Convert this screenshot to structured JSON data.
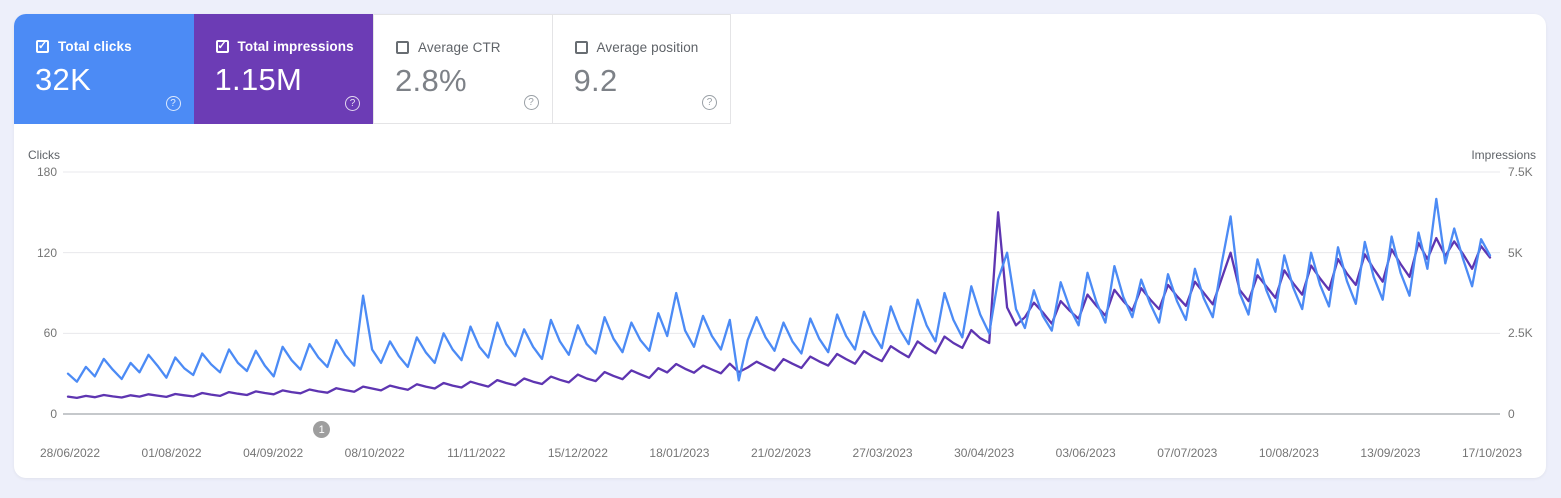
{
  "page": {
    "background": "#edeffa",
    "panel_background": "#ffffff",
    "grid_line_color": "#e8e8ec",
    "axis_line_color": "#8b9097",
    "annotation_badge_color": "#9e9e9e",
    "card_border_color": "#e4e4e6"
  },
  "icons": {
    "check": "✓",
    "help": "?"
  },
  "metric_cards": [
    {
      "label": "Total clicks",
      "value": "32K",
      "checked": true,
      "selected": true,
      "background": "#4c8bf5",
      "label_color": "#ffffff",
      "value_color": "#ffffff"
    },
    {
      "label": "Total impressions",
      "value": "1.15M",
      "checked": true,
      "selected": true,
      "background": "#6c3cb5",
      "label_color": "#ffffff",
      "value_color": "#ffffff"
    },
    {
      "label": "Average CTR",
      "value": "2.8%",
      "checked": false,
      "selected": false,
      "background": "#ffffff",
      "label_color": "#5f6368",
      "value_color": "#7d8187"
    },
    {
      "label": "Average position",
      "value": "9.2",
      "checked": false,
      "selected": false,
      "background": "#ffffff",
      "label_color": "#5f6368",
      "value_color": "#7d8187"
    }
  ],
  "chart_data": {
    "type": "line",
    "grid": true,
    "left_axis": {
      "label": "Clicks",
      "ticks": [
        "180",
        "120",
        "60",
        "0"
      ],
      "max": 180,
      "min": 0
    },
    "right_axis": {
      "label": "Impressions",
      "ticks": [
        "7.5K",
        "5K",
        "2.5K",
        "0"
      ],
      "max": 7500,
      "min": 0
    },
    "x_tick_labels": [
      "28/06/2022",
      "01/08/2022",
      "04/09/2022",
      "08/10/2022",
      "11/11/2022",
      "15/12/2022",
      "18/01/2023",
      "21/02/2023",
      "27/03/2023",
      "30/04/2023",
      "03/06/2023",
      "07/07/2023",
      "10/08/2023",
      "13/09/2023",
      "17/10/2023"
    ],
    "x_range": [
      "28/06/2022",
      "17/10/2023"
    ],
    "annotation_marker": {
      "label": "1",
      "x_fraction": 0.18
    },
    "series": [
      {
        "name": "Clicks",
        "axis": "left",
        "color": "#4c8bf5",
        "values": [
          30,
          24,
          35,
          28,
          41,
          33,
          26,
          38,
          31,
          44,
          36,
          27,
          42,
          34,
          29,
          45,
          37,
          31,
          48,
          38,
          32,
          47,
          36,
          28,
          50,
          40,
          33,
          52,
          42,
          35,
          55,
          44,
          36,
          88,
          48,
          38,
          54,
          43,
          35,
          57,
          46,
          38,
          60,
          48,
          40,
          65,
          50,
          42,
          68,
          52,
          43,
          63,
          50,
          41,
          70,
          54,
          44,
          66,
          52,
          45,
          72,
          56,
          46,
          68,
          55,
          47,
          75,
          58,
          90,
          62,
          50,
          73,
          58,
          48,
          70,
          25,
          55,
          72,
          57,
          47,
          68,
          54,
          45,
          71,
          56,
          46,
          74,
          58,
          48,
          76,
          60,
          49,
          80,
          63,
          52,
          85,
          66,
          54,
          90,
          70,
          57,
          95,
          74,
          60,
          100,
          120,
          78,
          64,
          92,
          73,
          62,
          98,
          79,
          66,
          105,
          83,
          68,
          110,
          87,
          72,
          100,
          82,
          68,
          104,
          84,
          70,
          108,
          86,
          72,
          112,
          147,
          90,
          74,
          115,
          92,
          76,
          118,
          94,
          78,
          120,
          96,
          80,
          124,
          99,
          82,
          128,
          102,
          85,
          132,
          105,
          88,
          135,
          108,
          160,
          112,
          138,
          115,
          95,
          130,
          118
        ]
      },
      {
        "name": "Impressions",
        "axis": "right",
        "color": "#5e35b1",
        "values": [
          540,
          500,
          560,
          520,
          590,
          545,
          510,
          580,
          540,
          610,
          570,
          530,
          620,
          580,
          545,
          650,
          600,
          560,
          680,
          630,
          590,
          700,
          650,
          610,
          730,
          680,
          640,
          760,
          700,
          660,
          800,
          740,
          690,
          850,
          790,
          730,
          880,
          810,
          750,
          920,
          850,
          790,
          960,
          880,
          820,
          1000,
          920,
          850,
          1050,
          960,
          890,
          1100,
          1000,
          930,
          1160,
          1060,
          980,
          1220,
          1100,
          1020,
          1300,
          1180,
          1080,
          1350,
          1230,
          1120,
          1420,
          1290,
          1550,
          1400,
          1280,
          1500,
          1380,
          1260,
          1560,
          1300,
          1440,
          1620,
          1480,
          1350,
          1700,
          1560,
          1430,
          1780,
          1630,
          1500,
          1860,
          1700,
          1560,
          1950,
          1780,
          1640,
          2100,
          1920,
          1760,
          2250,
          2050,
          1880,
          2400,
          2200,
          2050,
          2600,
          2350,
          2200,
          6250,
          3300,
          2750,
          3000,
          3450,
          3150,
          2800,
          3500,
          3200,
          2950,
          3700,
          3350,
          3050,
          3850,
          3500,
          3200,
          3900,
          3550,
          3250,
          4000,
          3650,
          3350,
          4100,
          3750,
          3400,
          4200,
          5000,
          3850,
          3500,
          4300,
          3950,
          3600,
          4450,
          4050,
          3700,
          4600,
          4200,
          3850,
          4800,
          4350,
          4000,
          4950,
          4500,
          4100,
          5100,
          4650,
          4250,
          5300,
          4800,
          5450,
          4900,
          5350,
          4950,
          4500,
          5200,
          4850
        ]
      }
    ]
  }
}
